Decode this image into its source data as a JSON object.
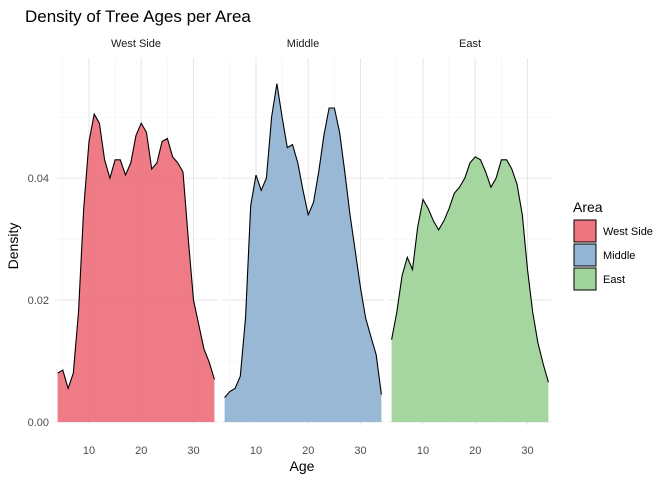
{
  "chart_data": {
    "type": "area",
    "title": "Density of Tree Ages per Area",
    "xlabel": "Age",
    "ylabel": "Density",
    "xlim": [
      3.5,
      34.5
    ],
    "ylim": [
      -0.0005,
      0.0597
    ],
    "x_ticks": [
      10,
      20,
      30
    ],
    "x_tick_labels": [
      "10",
      "20",
      "30"
    ],
    "y_ticks": [
      0,
      0.02,
      0.04
    ],
    "y_tick_labels": [
      "0.00",
      "0.02",
      "0.04"
    ],
    "grid": true,
    "legend": {
      "title": "Area",
      "position": "right"
    },
    "facets": [
      {
        "label": "West Side",
        "series": "West Side",
        "color": "#EE7480",
        "points": [
          [
            4,
            0.008
          ],
          [
            5,
            0.0085
          ],
          [
            6,
            0.0055
          ],
          [
            7,
            0.008
          ],
          [
            8,
            0.018
          ],
          [
            9,
            0.035
          ],
          [
            10,
            0.046
          ],
          [
            11,
            0.0505
          ],
          [
            12,
            0.049
          ],
          [
            13,
            0.043
          ],
          [
            14,
            0.04
          ],
          [
            15,
            0.043
          ],
          [
            16,
            0.043
          ],
          [
            17,
            0.0405
          ],
          [
            18,
            0.0425
          ],
          [
            19,
            0.047
          ],
          [
            20,
            0.049
          ],
          [
            21,
            0.0475
          ],
          [
            22,
            0.0415
          ],
          [
            23,
            0.0425
          ],
          [
            24,
            0.046
          ],
          [
            25,
            0.0465
          ],
          [
            26,
            0.0435
          ],
          [
            27,
            0.0425
          ],
          [
            28,
            0.041
          ],
          [
            29,
            0.03
          ],
          [
            30,
            0.02
          ],
          [
            31,
            0.016
          ],
          [
            32,
            0.012
          ],
          [
            33,
            0.0098
          ],
          [
            34,
            0.007
          ]
        ]
      },
      {
        "label": "Middle",
        "series": "Middle",
        "color": "#94B4D4",
        "points": [
          [
            4,
            0.004
          ],
          [
            5,
            0.005
          ],
          [
            6,
            0.0055
          ],
          [
            7,
            0.0075
          ],
          [
            8,
            0.017
          ],
          [
            9,
            0.0355
          ],
          [
            10,
            0.0405
          ],
          [
            11,
            0.038
          ],
          [
            12,
            0.04
          ],
          [
            13,
            0.05
          ],
          [
            14,
            0.0555
          ],
          [
            15,
            0.05
          ],
          [
            16,
            0.045
          ],
          [
            17,
            0.0455
          ],
          [
            18,
            0.0425
          ],
          [
            19,
            0.038
          ],
          [
            20,
            0.034
          ],
          [
            21,
            0.036
          ],
          [
            22,
            0.041
          ],
          [
            23,
            0.047
          ],
          [
            24,
            0.0515
          ],
          [
            25,
            0.0515
          ],
          [
            26,
            0.0475
          ],
          [
            27,
            0.041
          ],
          [
            28,
            0.034
          ],
          [
            29,
            0.028
          ],
          [
            30,
            0.022
          ],
          [
            31,
            0.017
          ],
          [
            32,
            0.014
          ],
          [
            33,
            0.011
          ],
          [
            34,
            0.0045
          ]
        ]
      },
      {
        "label": "East",
        "series": "East",
        "color": "#A0D49A",
        "points": [
          [
            4,
            0.0135
          ],
          [
            5,
            0.018
          ],
          [
            6,
            0.024
          ],
          [
            7,
            0.027
          ],
          [
            8,
            0.025
          ],
          [
            9,
            0.032
          ],
          [
            10,
            0.0365
          ],
          [
            11,
            0.035
          ],
          [
            12,
            0.033
          ],
          [
            13,
            0.0315
          ],
          [
            14,
            0.033
          ],
          [
            15,
            0.035
          ],
          [
            16,
            0.0375
          ],
          [
            17,
            0.0385
          ],
          [
            18,
            0.04
          ],
          [
            19,
            0.0425
          ],
          [
            20,
            0.0435
          ],
          [
            21,
            0.043
          ],
          [
            22,
            0.041
          ],
          [
            23,
            0.0385
          ],
          [
            24,
            0.04
          ],
          [
            25,
            0.043
          ],
          [
            26,
            0.043
          ],
          [
            27,
            0.0415
          ],
          [
            28,
            0.039
          ],
          [
            29,
            0.034
          ],
          [
            30,
            0.025
          ],
          [
            31,
            0.018
          ],
          [
            32,
            0.013
          ],
          [
            33,
            0.0095
          ],
          [
            34,
            0.0065
          ]
        ]
      }
    ]
  }
}
